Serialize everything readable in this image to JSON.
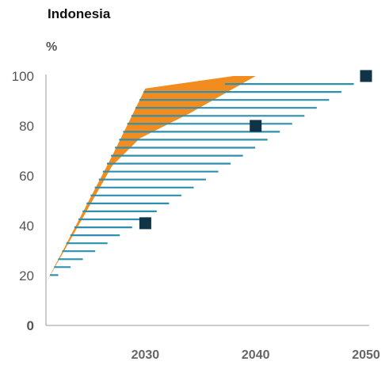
{
  "chart_data": {
    "type": "area",
    "title": "Indonesia",
    "ylabel": "%",
    "xlabel": "",
    "xlim": [
      2021,
      2050
    ],
    "ylim": [
      0,
      100
    ],
    "x_ticks": [
      "2030",
      "2040",
      "2050"
    ],
    "x_tick_values": [
      2030,
      2040,
      2050
    ],
    "y_ticks": [
      "0",
      "20",
      "40",
      "60",
      "80",
      "100"
    ],
    "y_tick_values": [
      0,
      20,
      40,
      60,
      80,
      100
    ],
    "grid": false,
    "legend": "none",
    "series": [
      {
        "style": "solid-band",
        "color": "#f28c1e",
        "upper": [
          [
            2021,
            17
          ],
          [
            2027,
            68
          ],
          [
            2030,
            95
          ],
          [
            2038,
            100
          ],
          [
            2040,
            100
          ],
          [
            2050,
            100
          ]
        ],
        "lower": [
          [
            2021,
            17
          ],
          [
            2027,
            64
          ],
          [
            2029.5,
            75
          ],
          [
            2034,
            85
          ],
          [
            2040,
            100
          ],
          [
            2050,
            100
          ]
        ]
      },
      {
        "style": "hatched-band",
        "color": "#2e8fae",
        "upper": [
          [
            2021,
            17
          ],
          [
            2030,
            95
          ],
          [
            2050,
            100
          ]
        ],
        "lower": [
          [
            2021,
            17
          ],
          [
            2050,
            100
          ]
        ]
      },
      {
        "style": "markers",
        "color": "#0f3447",
        "points": [
          [
            2030,
            41
          ],
          [
            2040,
            80
          ],
          [
            2050,
            100
          ]
        ]
      }
    ]
  }
}
